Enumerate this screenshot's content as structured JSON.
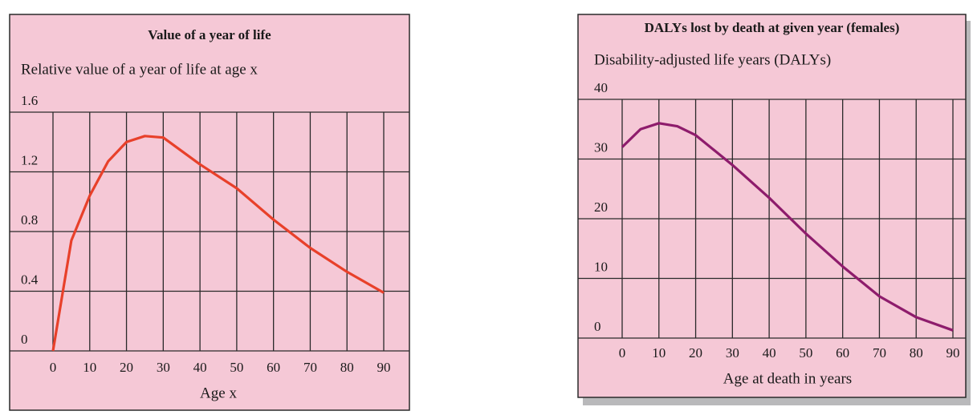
{
  "chart_data": [
    {
      "type": "line",
      "title": "Value of a year of life",
      "subtitle": "Relative value of a year of life at age x",
      "x_label": "Age x",
      "x": [
        0,
        5,
        10,
        15,
        20,
        25,
        30,
        40,
        50,
        60,
        70,
        80,
        90
      ],
      "series": [
        {
          "name": "Value",
          "color": "#e8402a",
          "values": [
            0,
            0.74,
            1.04,
            1.27,
            1.4,
            1.44,
            1.43,
            1.25,
            1.09,
            0.88,
            0.69,
            0.53,
            0.39
          ]
        }
      ],
      "xlim": [
        0,
        90
      ],
      "xticks": [
        0,
        10,
        20,
        30,
        40,
        50,
        60,
        70,
        80,
        90
      ],
      "ylim": [
        0,
        1.6
      ],
      "yticks": [
        0,
        0.4,
        0.8,
        1.2,
        1.6
      ],
      "grid": true
    },
    {
      "type": "line",
      "title": "DALYs lost by death at given year (females)",
      "subtitle": "Disability-adjusted life years (DALYs)",
      "x_label": "Age at death in years",
      "x": [
        0,
        5,
        10,
        15,
        20,
        30,
        40,
        50,
        60,
        70,
        80,
        90
      ],
      "series": [
        {
          "name": "DALYs",
          "color": "#8e1c6c",
          "values": [
            32,
            35,
            36,
            35.5,
            34,
            29,
            23.5,
            17.5,
            12,
            7,
            3.5,
            1.3
          ]
        }
      ],
      "xlim": [
        0,
        90
      ],
      "xticks": [
        0,
        10,
        20,
        30,
        40,
        50,
        60,
        70,
        80,
        90
      ],
      "ylim": [
        0,
        40
      ],
      "yticks": [
        0,
        10,
        20,
        30,
        40
      ],
      "grid": true
    }
  ]
}
